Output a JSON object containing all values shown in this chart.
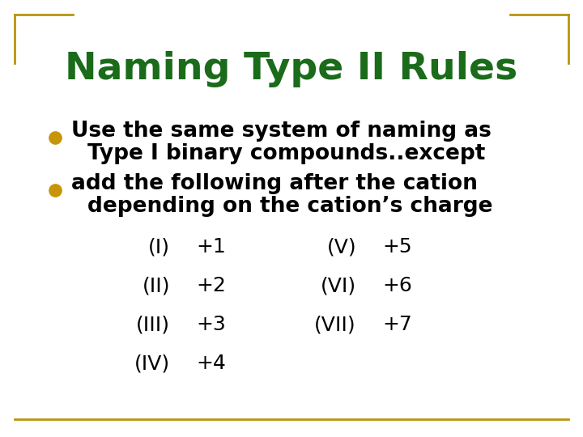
{
  "title": "Naming Type II Rules",
  "title_color": "#1a6b1a",
  "title_fontsize": 34,
  "bg_color": "#ffffff",
  "border_color": "#b8960c",
  "bullet_color": "#c8940a",
  "bullet1_line1": "Use the same system of naming as",
  "bullet1_line2": "Type I binary compounds..except",
  "bullet2_line1": "add the following after the cation",
  "bullet2_line2": "depending on the cation’s charge",
  "bullet_fontsize": 19,
  "table_fontsize": 18,
  "left_roman": [
    "(I)",
    "(II)",
    "(III)",
    "(IV)"
  ],
  "left_charge": [
    "+1",
    "+2",
    "+3",
    "+4"
  ],
  "right_roman": [
    "(V)",
    "(VI)",
    "(VII)"
  ],
  "right_charge": [
    "+5",
    "+6",
    "+7"
  ]
}
